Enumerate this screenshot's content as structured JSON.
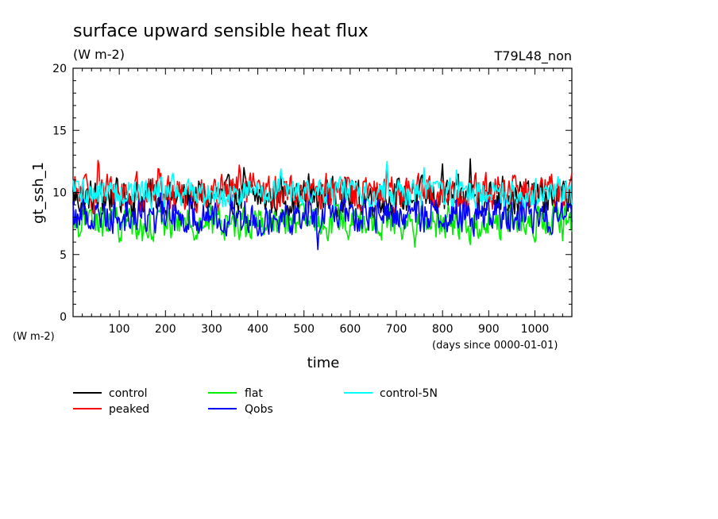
{
  "chart_data": {
    "type": "line",
    "title": "surface upward sensible heat flux",
    "units": "(W m-2)",
    "run_label": "T79L48_non",
    "xlabel": "time",
    "x_units": "(days since 0000-01-01)",
    "ylabel": "gt_ssh_1",
    "y_units": "(W m-2)",
    "xlim": [
      0,
      1080
    ],
    "ylim": [
      0,
      20
    ],
    "x_ticks": [
      100,
      200,
      300,
      400,
      500,
      600,
      700,
      800,
      900,
      1000
    ],
    "y_ticks": [
      0,
      5,
      10,
      15,
      20
    ],
    "grid": false,
    "legend_position": "below",
    "series": [
      {
        "name": "control",
        "color": "#000000",
        "mean": 9.6,
        "amplitude": 1.0,
        "peaks": [
          [
            370,
            12.0
          ],
          [
            450,
            11.3
          ],
          [
            510,
            11.5
          ],
          [
            550,
            11.0
          ],
          [
            800,
            12.3
          ],
          [
            860,
            12.7
          ],
          [
            930,
            11.3
          ]
        ]
      },
      {
        "name": "peaked",
        "color": "#ff0000",
        "mean": 10.0,
        "amplitude": 1.0,
        "peaks": [
          [
            55,
            13.3
          ],
          [
            185,
            12.5
          ],
          [
            360,
            12.2
          ],
          [
            680,
            12.0
          ],
          [
            1080,
            11.6
          ]
        ]
      },
      {
        "name": "flat",
        "color": "#00ee00",
        "mean": 7.6,
        "amplitude": 0.9,
        "peaks": [
          [
            100,
            6.0
          ],
          [
            150,
            6.1
          ],
          [
            740,
            5.6
          ],
          [
            860,
            5.8
          ],
          [
            1060,
            6.1
          ]
        ]
      },
      {
        "name": "Qobs",
        "color": "#0000ff",
        "mean": 8.2,
        "amplitude": 1.0,
        "peaks": [
          [
            530,
            5.4
          ],
          [
            365,
            6.6
          ],
          [
            620,
            6.9
          ]
        ]
      },
      {
        "name": "control-5N",
        "color": "#00ffff",
        "mean": 10.0,
        "amplitude": 0.8,
        "peaks": [
          [
            215,
            11.8
          ],
          [
            680,
            12.5
          ],
          [
            760,
            12.0
          ],
          [
            830,
            11.8
          ],
          [
            450,
            11.9
          ]
        ]
      }
    ]
  }
}
